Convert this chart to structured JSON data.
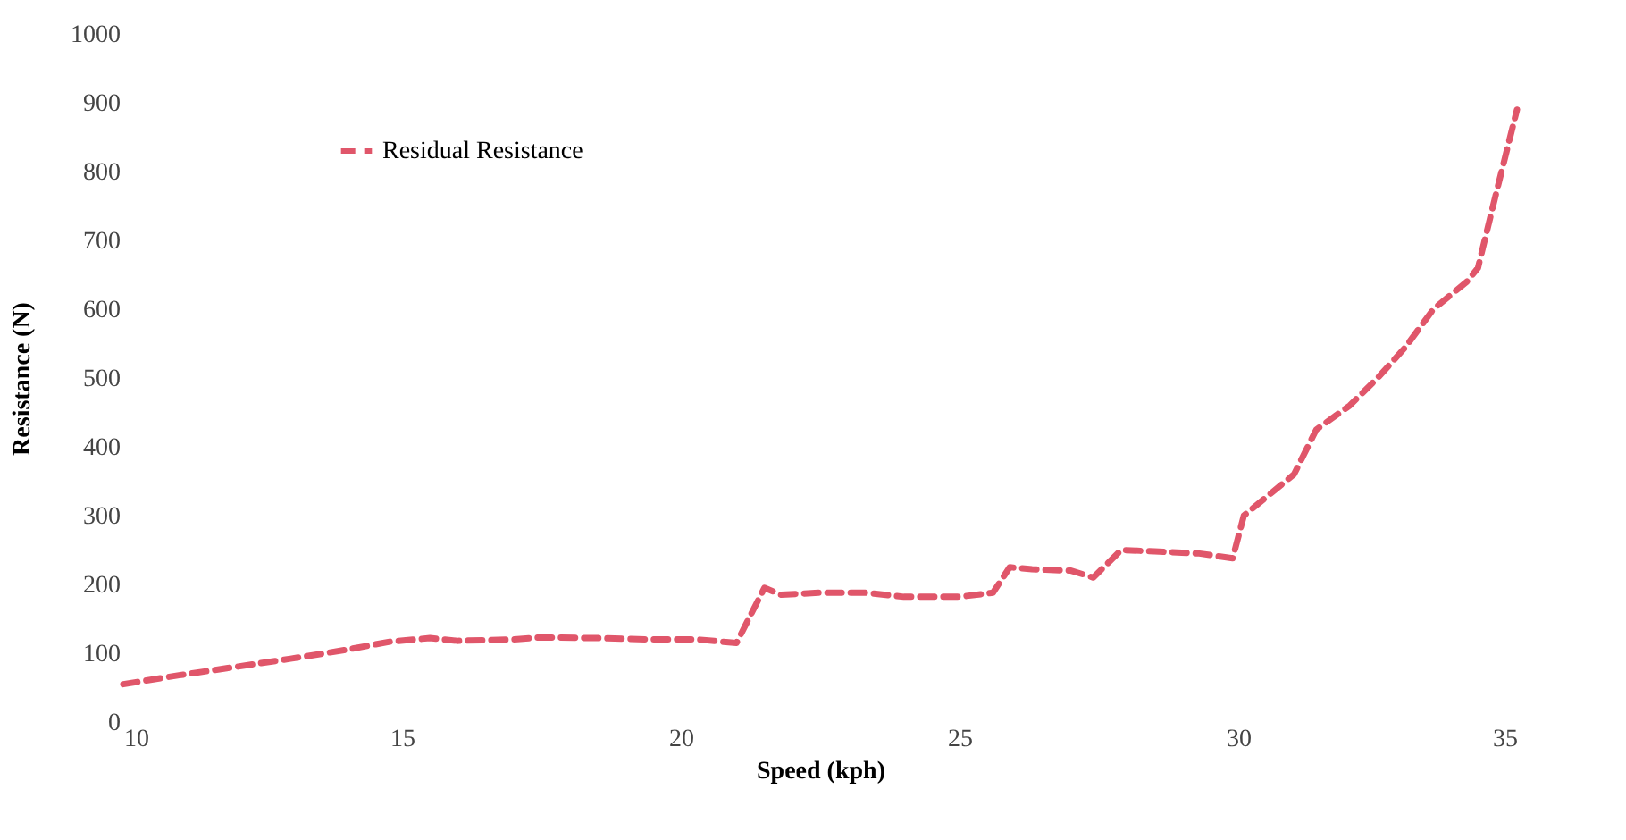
{
  "chart_data": {
    "type": "line",
    "xlabel": "Speed (kph)",
    "ylabel": "Resistance (N)",
    "x": [
      10,
      11,
      12,
      13,
      14,
      14.8,
      15.5,
      16,
      17,
      17.5,
      18.5,
      19.5,
      20.3,
      21,
      21.5,
      21.8,
      22.5,
      23.3,
      24,
      25,
      25.6,
      25.9,
      26.3,
      27,
      27.4,
      27.9,
      28.5,
      29.3,
      29.9,
      30.1,
      31,
      31.4,
      32,
      32.5,
      33,
      33.5,
      34.1,
      34.3,
      34.6,
      35
    ],
    "series": [
      {
        "name": "Residual Resistance",
        "color": "#e0566a",
        "values": [
          55,
          68,
          80,
          92,
          105,
          117,
          122,
          118,
          120,
          123,
          122,
          120,
          120,
          115,
          195,
          185,
          188,
          188,
          182,
          182,
          188,
          225,
          222,
          220,
          210,
          250,
          248,
          245,
          238,
          300,
          360,
          425,
          460,
          500,
          545,
          600,
          640,
          660,
          760,
          890
        ]
      }
    ],
    "xlim": [
      10,
      35
    ],
    "xticks": [
      10,
      15,
      20,
      25,
      30,
      35
    ],
    "ylim": [
      0,
      1000
    ],
    "yticks": [
      0,
      100,
      200,
      300,
      400,
      500,
      600,
      700,
      800,
      900,
      1000
    ],
    "grid": false,
    "legend": "top left",
    "marker": "none",
    "line_style": "dashed"
  }
}
